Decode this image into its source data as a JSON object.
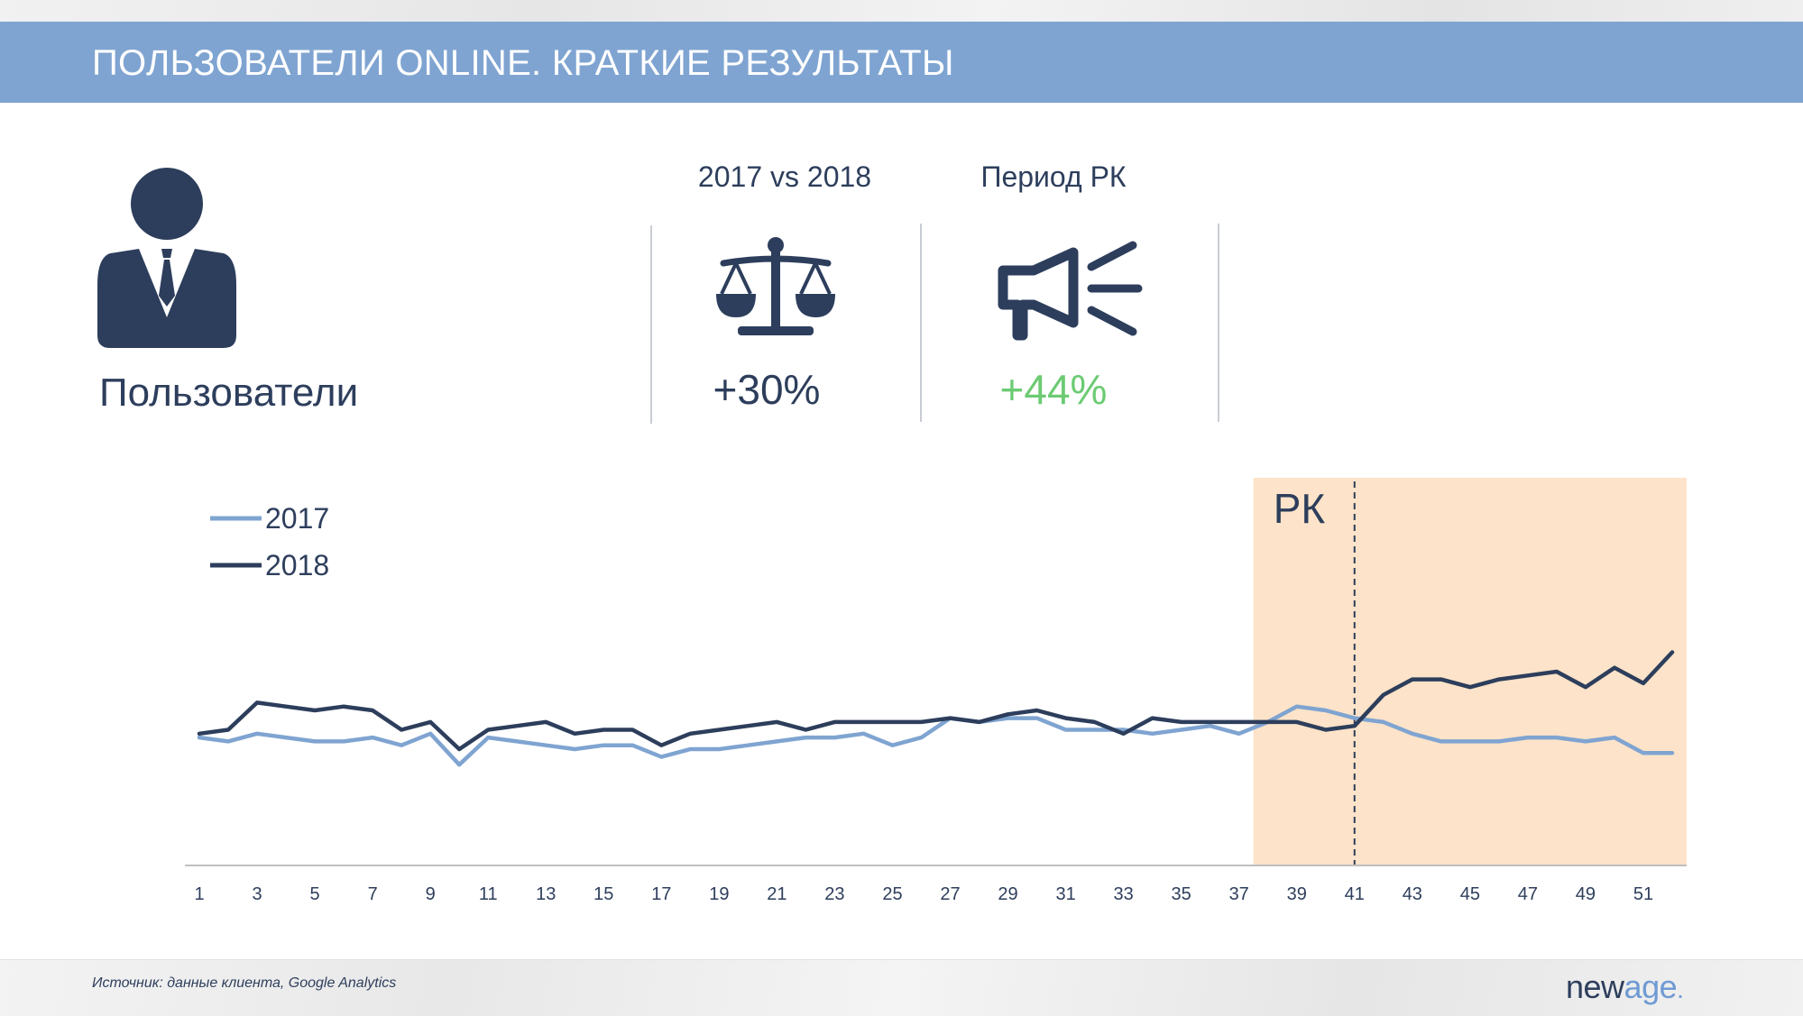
{
  "header": {
    "title": "ПОЛЬЗОВАТЕЛИ ONLINE. КРАТКИЕ РЕЗУЛЬТАТЫ"
  },
  "metric": {
    "label": "Пользователи",
    "icon": "user-businessman-icon"
  },
  "comparison": {
    "heading": "2017 vs 2018",
    "value": "+30%",
    "icon": "scale-icon",
    "color": "#2d3e5c"
  },
  "campaign": {
    "heading": "Период РК",
    "value": "+44%",
    "icon": "megaphone-icon",
    "color": "#6ccb73"
  },
  "chart_data": {
    "type": "line",
    "x": [
      1,
      2,
      3,
      4,
      5,
      6,
      7,
      8,
      9,
      10,
      11,
      12,
      13,
      14,
      15,
      16,
      17,
      18,
      19,
      20,
      21,
      22,
      23,
      24,
      25,
      26,
      27,
      28,
      29,
      30,
      31,
      32,
      33,
      34,
      35,
      36,
      37,
      38,
      39,
      40,
      41,
      42,
      43,
      44,
      45,
      46,
      47,
      48,
      49,
      50,
      51,
      52
    ],
    "x_tick_labels": [
      "1",
      "3",
      "5",
      "7",
      "9",
      "11",
      "13",
      "15",
      "17",
      "19",
      "21",
      "23",
      "25",
      "27",
      "29",
      "31",
      "33",
      "35",
      "37",
      "39",
      "41",
      "43",
      "45",
      "47",
      "49",
      "51"
    ],
    "xlim": [
      0.5,
      52.5
    ],
    "ylim": [
      0,
      100
    ],
    "series": [
      {
        "name": "2017",
        "color": "#7fa4d1",
        "values": [
          33,
          32,
          34,
          33,
          32,
          32,
          33,
          31,
          34,
          26,
          33,
          32,
          31,
          30,
          31,
          31,
          28,
          30,
          30,
          31,
          32,
          33,
          33,
          34,
          31,
          33,
          38,
          37,
          38,
          38,
          35,
          35,
          35,
          34,
          35,
          36,
          34,
          37,
          41,
          40,
          38,
          37,
          34,
          32,
          32,
          32,
          33,
          33,
          32,
          33,
          29,
          29
        ]
      },
      {
        "name": "2018",
        "color": "#2d3e5c",
        "values": [
          34,
          35,
          42,
          41,
          40,
          41,
          40,
          35,
          37,
          30,
          35,
          36,
          37,
          34,
          35,
          35,
          31,
          34,
          35,
          36,
          37,
          35,
          37,
          37,
          37,
          37,
          38,
          37,
          39,
          40,
          38,
          37,
          34,
          38,
          37,
          37,
          37,
          37,
          37,
          35,
          36,
          44,
          48,
          48,
          46,
          48,
          49,
          50,
          46,
          51,
          47,
          55
        ]
      }
    ],
    "highlight": {
      "label": "РК",
      "x_start": 37.5,
      "x_end": 52.5,
      "color": "#fde3c9",
      "marker_x": 41
    },
    "legend": "top-left",
    "grid": false
  },
  "footer": {
    "source": "Источник: данные клиента, Google Analytics",
    "logo_part1": "new",
    "logo_part2": "age",
    "logo_dot": "."
  }
}
